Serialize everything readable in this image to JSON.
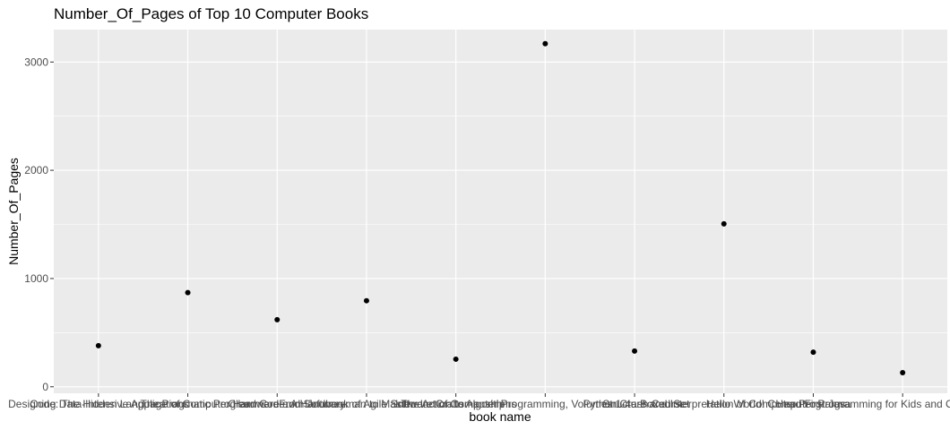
{
  "chart_data": {
    "type": "scatter",
    "title": "Number_Of_Pages of Top 10 Computer Books",
    "xlabel": "book name",
    "ylabel": "Number_Of_Pages",
    "ylim": [
      -60,
      3300
    ],
    "yticks": [
      0,
      1000,
      2000,
      3000
    ],
    "grid": true,
    "categories": [
      "Designing Data-Intensive Applications",
      "Code: The Hidden Language of Computer Hardware and Software",
      "The Pragmatic Programmer: From Journeyman to Master",
      "Clean Code: A Handbook of Agile Software Craftsmanship",
      "Introduction to Algorithms",
      "The Art of Computer Programming, Volumes 1-4a Boxed Set",
      "Python Crash Course",
      "Structure and Interpretation of Computer Programs",
      "Head First Java",
      "Hello World! Computer Programming for Kids and Other Beginners with fun games"
    ],
    "values": [
      380,
      870,
      620,
      795,
      255,
      3170,
      330,
      1505,
      320,
      130
    ]
  }
}
